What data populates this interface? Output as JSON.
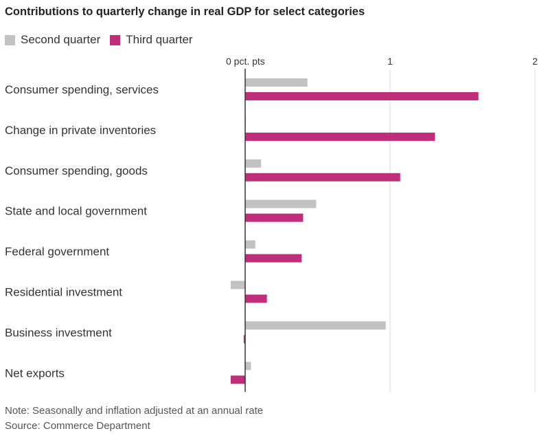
{
  "title": "Contributions to quarterly change in real GDP for select categories",
  "note": "Note: Seasonally and inflation adjusted at an annual rate",
  "source": "Source: Commerce Department",
  "colors": {
    "series0": "#c2c2c2",
    "series1": "#bf2e7a",
    "grid": "#dddddd",
    "zero": "#333333"
  },
  "chart_data": {
    "type": "bar",
    "orientation": "horizontal",
    "title": "Contributions to quarterly change in real GDP for select categories",
    "x_unit": "pct. pts",
    "xlim": [
      -0.1,
      2
    ],
    "x_ticks": [
      0,
      1,
      2
    ],
    "x_tick_labels": [
      "0 pct. pts",
      "1",
      "2"
    ],
    "grid": true,
    "legend_position": "top-left",
    "categories": [
      "Consumer spending, services",
      "Change in private inventories",
      "Consumer spending, goods",
      "State and local government",
      "Federal government",
      "Residential investment",
      "Business investment",
      "Net exports"
    ],
    "series": [
      {
        "name": "Second quarter",
        "values": [
          0.43,
          0.0,
          0.11,
          0.49,
          0.07,
          -0.1,
          0.97,
          0.04
        ]
      },
      {
        "name": "Third quarter",
        "values": [
          1.61,
          1.31,
          1.07,
          0.4,
          0.39,
          0.15,
          -0.01,
          -0.1
        ]
      }
    ]
  }
}
